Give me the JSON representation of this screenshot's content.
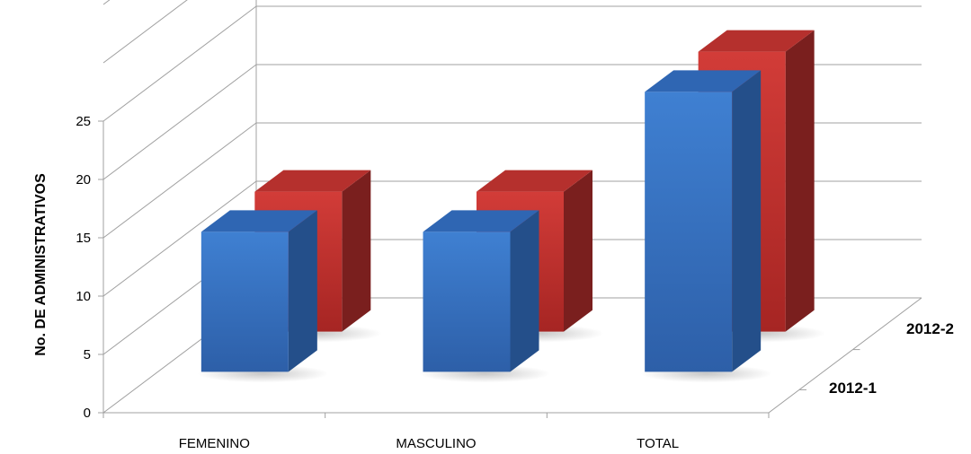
{
  "chart_data": {
    "type": "bar",
    "subtype": "3d-column",
    "categories": [
      "FEMENINO",
      "MASCULINO",
      "TOTAL"
    ],
    "series": [
      {
        "name": "2012-1",
        "values": [
          12,
          12,
          24
        ],
        "color": "#3a78c8"
      },
      {
        "name": "2012-2",
        "values": [
          12,
          12,
          24
        ],
        "color": "#c8302e"
      }
    ],
    "ylabel": "No. DE ADMINISTRATIVOS",
    "xlabel": "",
    "yticks": [
      "0",
      "5",
      "10",
      "15",
      "20",
      "25"
    ],
    "ylim": [
      0,
      25
    ],
    "grid": true
  }
}
